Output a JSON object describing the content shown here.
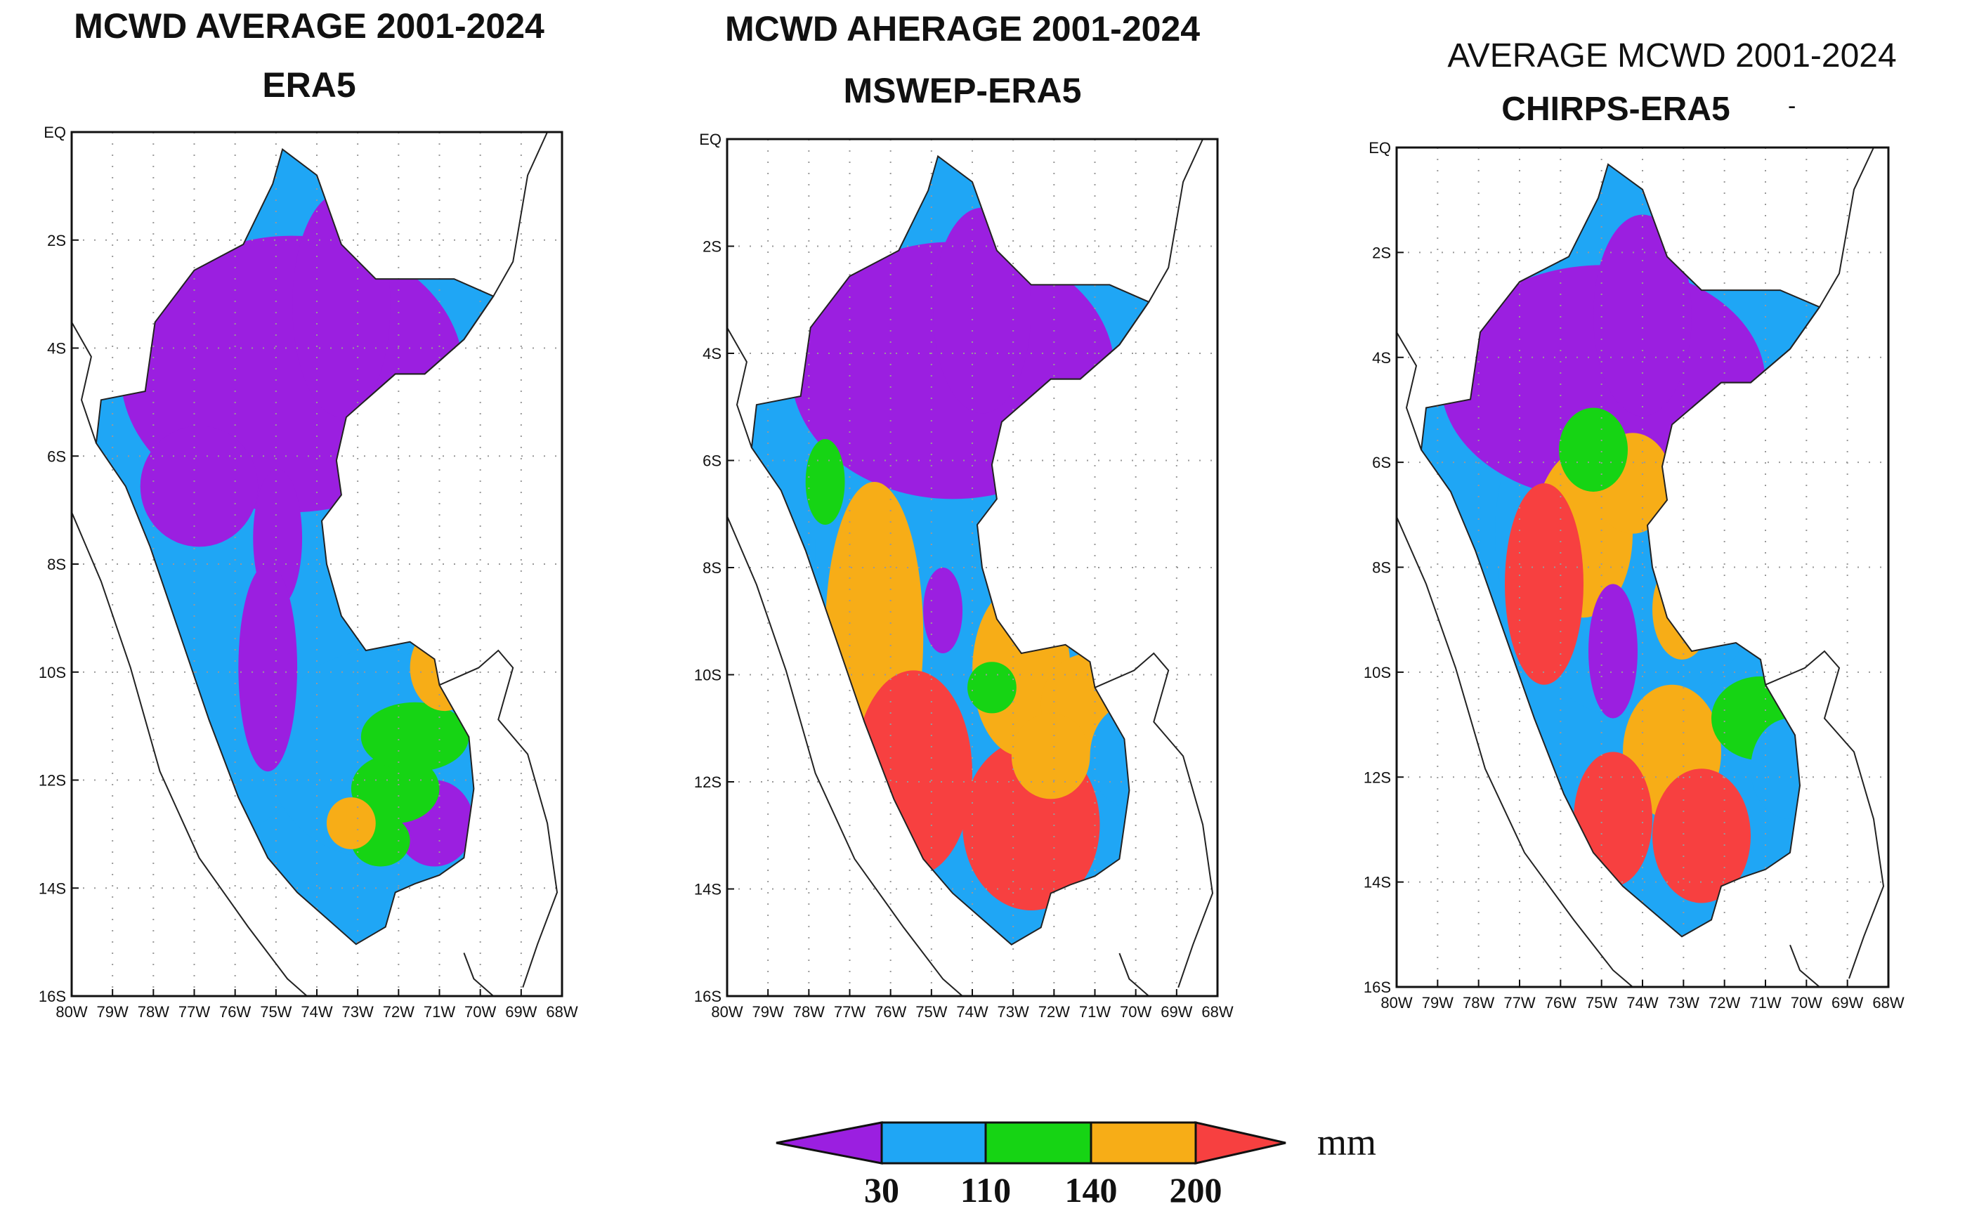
{
  "panels": [
    {
      "title1": "MCWD AVERAGE 2001-2024",
      "title2": "ERA5"
    },
    {
      "title1": "MCWD AHERAGE 2001-2024",
      "title2": "MSWEP-ERA5"
    },
    {
      "title1": "AVERAGE MCWD 2001-2024",
      "title2": "CHIRPS-ERA5",
      "mark": "-"
    }
  ],
  "axes": {
    "lat_labels": [
      "EQ",
      "2S",
      "4S",
      "6S",
      "8S",
      "10S",
      "12S",
      "14S",
      "16S"
    ],
    "lon_labels": [
      "80W",
      "79W",
      "78W",
      "77W",
      "76W",
      "75W",
      "74W",
      "73W",
      "72W",
      "71W",
      "70W",
      "69W",
      "68W"
    ]
  },
  "colorbar": {
    "unit": "mm",
    "ticks": [
      "30",
      "110",
      "140",
      "200"
    ],
    "colors": [
      "#9b1fe0",
      "#1fa6f5",
      "#16d414",
      "#f7ad17",
      "#f74040"
    ]
  },
  "colors": {
    "purple": "#9b1fe0",
    "blue": "#1fa6f5",
    "green": "#16d414",
    "orange": "#f7ad17",
    "red": "#f74040"
  }
}
